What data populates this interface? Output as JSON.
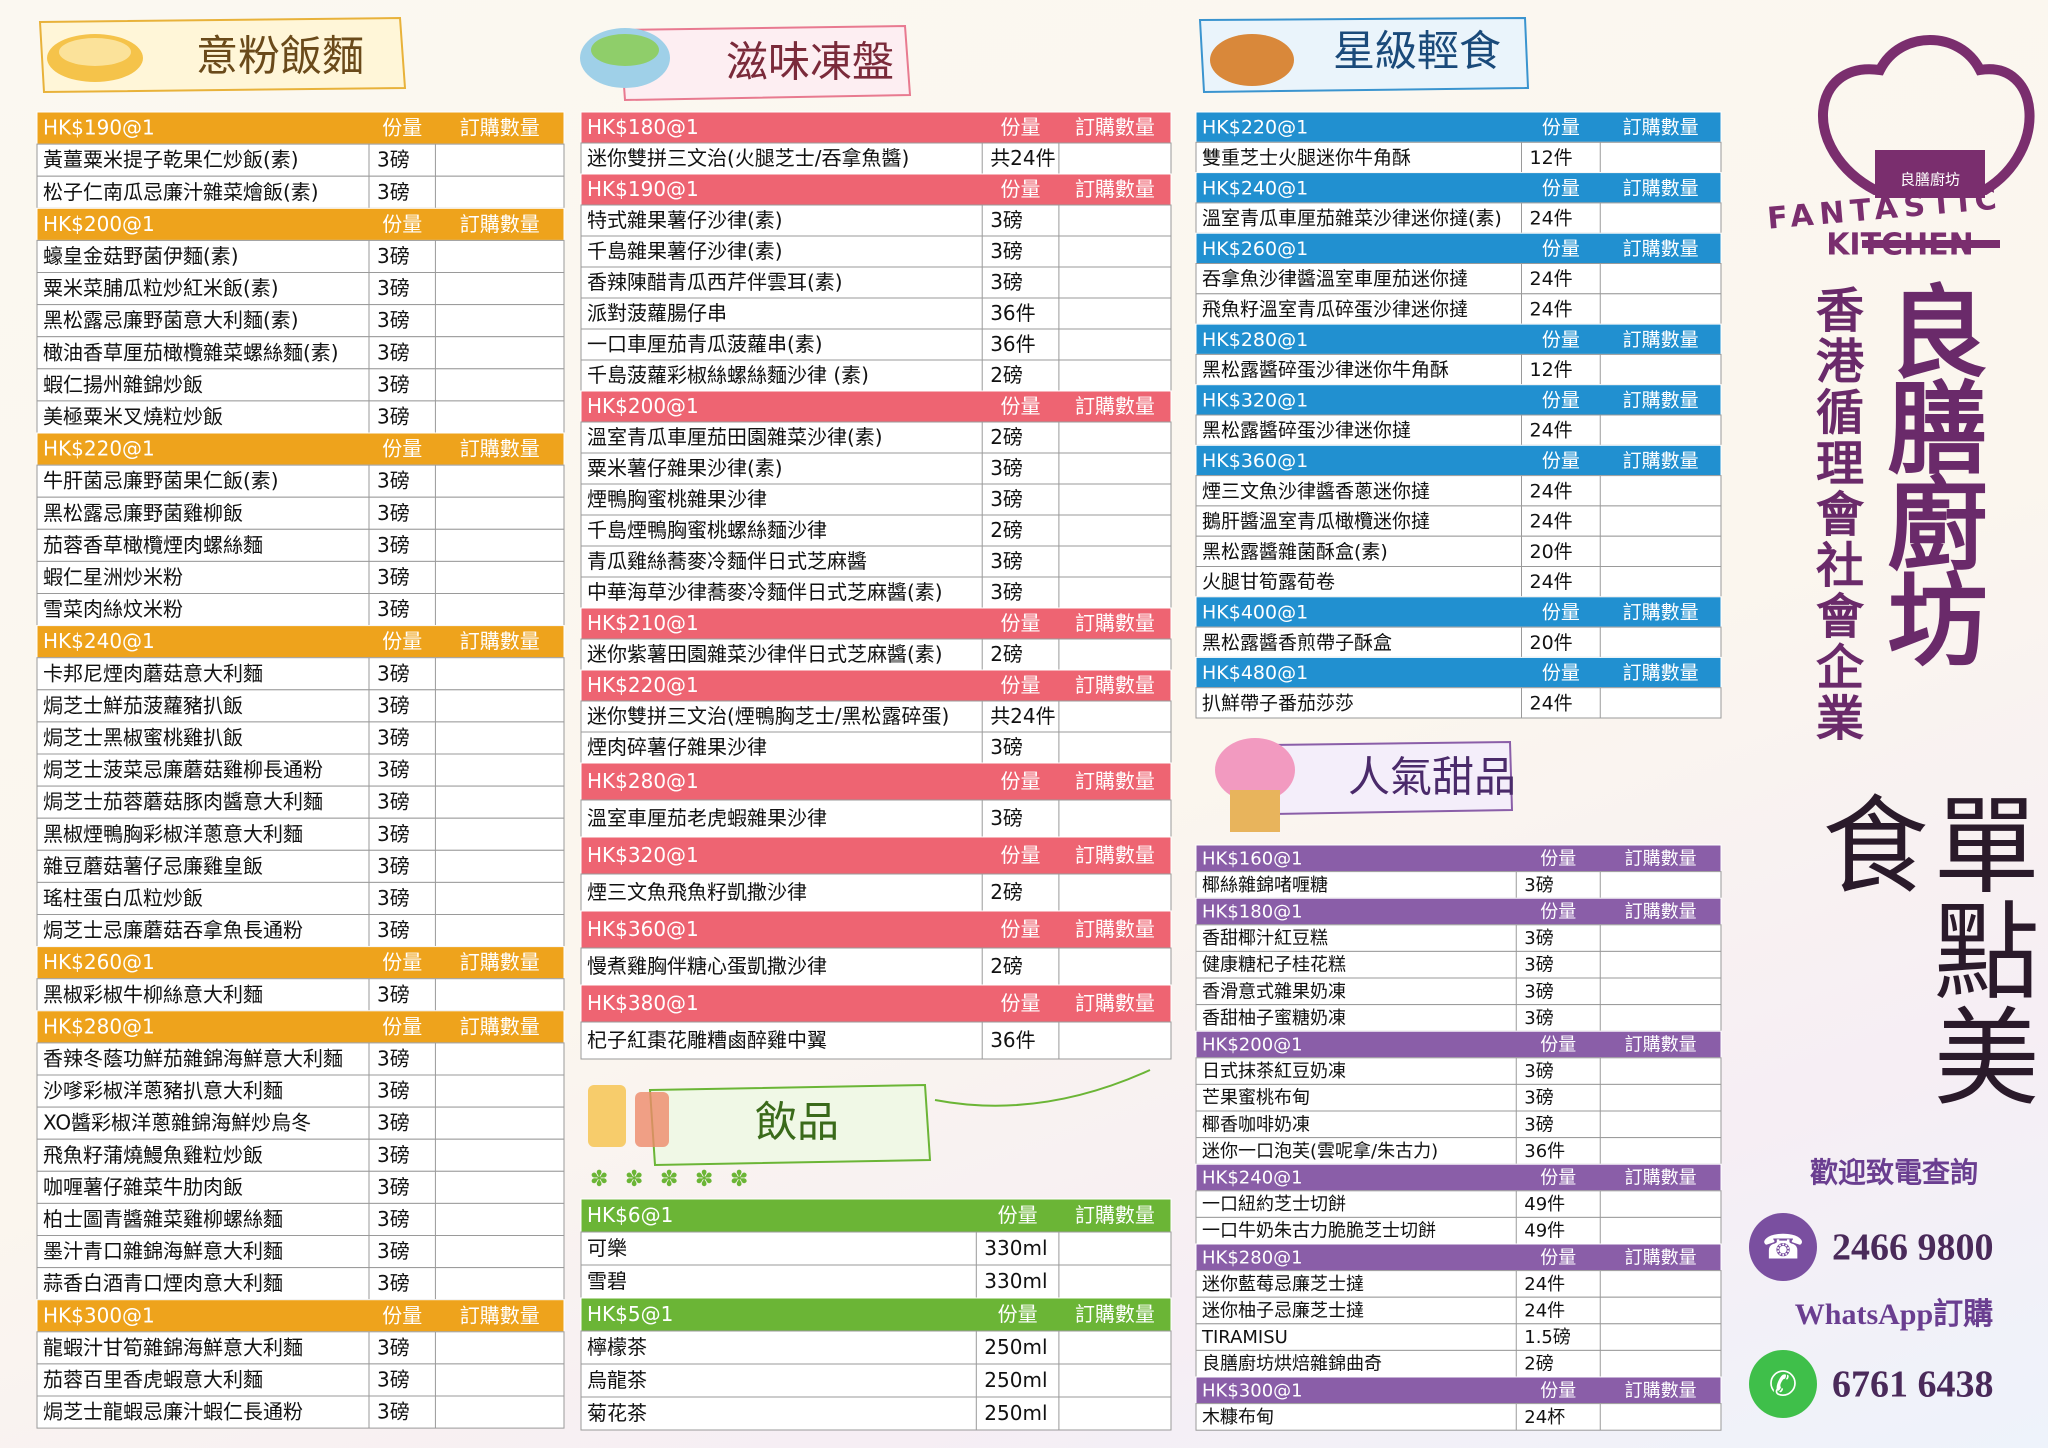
{
  "columns": [
    "份量",
    "訂購數量"
  ],
  "sections": [
    {
      "title": "意粉飯麵",
      "groups": [
        {
          "price": "HK$190@1",
          "items": [
            {
              "name": "黃薑粟米提子乾果仁炒飯(素)",
              "qty": "3磅"
            },
            {
              "name": "松子仁南瓜忌廉汁雜菜燴飯(素)",
              "qty": "3磅"
            }
          ]
        },
        {
          "price": "HK$200@1",
          "items": [
            {
              "name": "蠔皇金菇野菌伊麵(素)",
              "qty": "3磅"
            },
            {
              "name": "粟米菜脯瓜粒炒紅米飯(素)",
              "qty": "3磅"
            },
            {
              "name": "黑松露忌廉野菌意大利麵(素)",
              "qty": "3磅"
            },
            {
              "name": "橄油香草厘茄橄欖雜菜螺絲麵(素)",
              "qty": "3磅"
            },
            {
              "name": "蝦仁揚州雜錦炒飯",
              "qty": "3磅"
            },
            {
              "name": "美極粟米叉燒粒炒飯",
              "qty": "3磅"
            }
          ]
        },
        {
          "price": "HK$220@1",
          "items": [
            {
              "name": "牛肝菌忌廉野菌果仁飯(素)",
              "qty": "3磅"
            },
            {
              "name": "黑松露忌廉野菌雞柳飯",
              "qty": "3磅"
            },
            {
              "name": "茄蓉香草橄欖煙肉螺絲麵",
              "qty": "3磅"
            },
            {
              "name": "蝦仁星洲炒米粉",
              "qty": "3磅"
            },
            {
              "name": "雪菜肉絲炆米粉",
              "qty": "3磅"
            }
          ]
        },
        {
          "price": "HK$240@1",
          "items": [
            {
              "name": "卡邦尼煙肉蘑菇意大利麵",
              "qty": "3磅"
            },
            {
              "name": "焗芝士鮮茄菠蘿豬扒飯",
              "qty": "3磅"
            },
            {
              "name": "焗芝士黑椒蜜桃雞扒飯",
              "qty": "3磅"
            },
            {
              "name": "焗芝士菠菜忌廉蘑菇雞柳長通粉",
              "qty": "3磅"
            },
            {
              "name": "焗芝士茄蓉蘑菇豚肉醬意大利麵",
              "qty": "3磅"
            },
            {
              "name": "黑椒煙鴨胸彩椒洋蔥意大利麵",
              "qty": "3磅"
            },
            {
              "name": "雜豆蘑菇薯仔忌廉雞皇飯",
              "qty": "3磅"
            },
            {
              "name": "瑤柱蛋白瓜粒炒飯",
              "qty": "3磅"
            },
            {
              "name": "焗芝士忌廉蘑菇吞拿魚長通粉",
              "qty": "3磅"
            }
          ]
        },
        {
          "price": "HK$260@1",
          "items": [
            {
              "name": "黑椒彩椒牛柳絲意大利麵",
              "qty": "3磅"
            }
          ]
        },
        {
          "price": "HK$280@1",
          "items": [
            {
              "name": "香辣冬蔭功鮮茄雜錦海鮮意大利麵",
              "qty": "3磅"
            },
            {
              "name": "沙嗲彩椒洋蔥豬扒意大利麵",
              "qty": "3磅"
            },
            {
              "name": "XO醬彩椒洋蔥雜錦海鮮炒烏冬",
              "qty": "3磅"
            },
            {
              "name": "飛魚籽蒲燒鰻魚雞粒炒飯",
              "qty": "3磅"
            },
            {
              "name": "咖喱薯仔雜菜牛肋肉飯",
              "qty": "3磅"
            },
            {
              "name": "柏士圖青醬雜菜雞柳螺絲麵",
              "qty": "3磅"
            },
            {
              "name": "墨汁青口雜錦海鮮意大利麵",
              "qty": "3磅"
            },
            {
              "name": "蒜香白酒青口煙肉意大利麵",
              "qty": "3磅"
            }
          ]
        },
        {
          "price": "HK$300@1",
          "items": [
            {
              "name": "龍蝦汁甘筍雜錦海鮮意大利麵",
              "qty": "3磅"
            },
            {
              "name": "茄蓉百里香虎蝦意大利麵",
              "qty": "3磅"
            },
            {
              "name": "焗芝士龍蝦忌廉汁蝦仁長通粉",
              "qty": "3磅"
            }
          ]
        }
      ]
    },
    {
      "title": "滋味凍盤",
      "groups": [
        {
          "price": "HK$180@1",
          "items": [
            {
              "name": "迷你雙拼三文治(火腿芝士/吞拿魚醬)",
              "qty": "共24件"
            }
          ]
        },
        {
          "price": "HK$190@1",
          "items": [
            {
              "name": "特式雜果薯仔沙律(素)",
              "qty": "3磅"
            },
            {
              "name": "千島雜果薯仔沙律(素)",
              "qty": "3磅"
            },
            {
              "name": "香辣陳醋青瓜西芹伴雲耳(素)",
              "qty": "3磅"
            },
            {
              "name": "派對菠蘿腸仔串",
              "qty": "36件"
            },
            {
              "name": "一口車厘茄青瓜菠蘿串(素)",
              "qty": "36件"
            },
            {
              "name": "千島菠蘿彩椒絲螺絲麵沙律 (素)",
              "qty": "2磅"
            }
          ]
        },
        {
          "price": "HK$200@1",
          "items": [
            {
              "name": "溫室青瓜車厘茄田園雜菜沙律(素)",
              "qty": "2磅"
            },
            {
              "name": "粟米薯仔雜果沙律(素)",
              "qty": "3磅"
            },
            {
              "name": "煙鴨胸蜜桃雜果沙律",
              "qty": "3磅"
            },
            {
              "name": "千島煙鴨胸蜜桃螺絲麵沙律",
              "qty": "2磅"
            },
            {
              "name": "青瓜雞絲蕎麥冷麵伴日式芝麻醬",
              "qty": "3磅"
            },
            {
              "name": "中華海草沙律蕎麥冷麵伴日式芝麻醬(素)",
              "qty": "3磅"
            }
          ]
        },
        {
          "price": "HK$210@1",
          "items": [
            {
              "name": "迷你紫薯田園雜菜沙律伴日式芝麻醬(素)",
              "qty": "2磅"
            }
          ]
        },
        {
          "price": "HK$220@1",
          "items": [
            {
              "name": "迷你雙拼三文治(煙鴨胸芝士/黑松露碎蛋)",
              "qty": "共24件"
            },
            {
              "name": "煙肉碎薯仔雜果沙律",
              "qty": "3磅"
            }
          ]
        },
        {
          "price": "HK$280@1",
          "items": [
            {
              "name": "溫室車厘茄老虎蝦雜果沙律",
              "qty": "3磅"
            }
          ]
        },
        {
          "price": "HK$320@1",
          "items": [
            {
              "name": "煙三文魚飛魚籽凱撒沙律",
              "qty": "2磅"
            }
          ]
        },
        {
          "price": "HK$360@1",
          "items": [
            {
              "name": "慢煮雞胸伴糖心蛋凱撒沙律",
              "qty": "2磅"
            }
          ]
        },
        {
          "price": "HK$380@1",
          "items": [
            {
              "name": "杞子紅棗花雕糟鹵醉雞中翼",
              "qty": "36件"
            }
          ]
        }
      ]
    },
    {
      "title": "飲品",
      "groups": [
        {
          "price": "HK$6@1",
          "items": [
            {
              "name": "可樂",
              "qty": "330ml"
            },
            {
              "name": "雪碧",
              "qty": "330ml"
            }
          ]
        },
        {
          "price": "HK$5@1",
          "items": [
            {
              "name": "檸檬茶",
              "qty": "250ml"
            },
            {
              "name": "烏龍茶",
              "qty": "250ml"
            },
            {
              "name": "菊花茶",
              "qty": "250ml"
            }
          ]
        }
      ]
    },
    {
      "title": "星級輕食",
      "groups": [
        {
          "price": "HK$220@1",
          "items": [
            {
              "name": "雙重芝士火腿迷你牛角酥",
              "qty": "12件"
            }
          ]
        },
        {
          "price": "HK$240@1",
          "items": [
            {
              "name": "溫室青瓜車厘茄雜菜沙律迷你撻(素)",
              "qty": "24件"
            }
          ]
        },
        {
          "price": "HK$260@1",
          "items": [
            {
              "name": "吞拿魚沙律醬溫室車厘茄迷你撻",
              "qty": "24件"
            },
            {
              "name": "飛魚籽溫室青瓜碎蛋沙律迷你撻",
              "qty": "24件"
            }
          ]
        },
        {
          "price": "HK$280@1",
          "items": [
            {
              "name": "黑松露醬碎蛋沙律迷你牛角酥",
              "qty": "12件"
            }
          ]
        },
        {
          "price": "HK$320@1",
          "items": [
            {
              "name": "黑松露醬碎蛋沙律迷你撻",
              "qty": "24件"
            }
          ]
        },
        {
          "price": "HK$360@1",
          "items": [
            {
              "name": "煙三文魚沙律醬香蔥迷你撻",
              "qty": "24件"
            },
            {
              "name": "鵝肝醬溫室青瓜橄欖迷你撻",
              "qty": "24件"
            },
            {
              "name": "黑松露醬雜菌酥盒(素)",
              "qty": "20件"
            },
            {
              "name": "火腿甘筍露荀卷",
              "qty": "24件"
            }
          ]
        },
        {
          "price": "HK$400@1",
          "items": [
            {
              "name": "黑松露醬香煎帶子酥盒",
              "qty": "20件"
            }
          ]
        },
        {
          "price": "HK$480@1",
          "items": [
            {
              "name": "扒鮮帶子番茄莎莎",
              "qty": "24件"
            }
          ]
        }
      ]
    },
    {
      "title": "人氣甜品",
      "groups": [
        {
          "price": "HK$160@1",
          "items": [
            {
              "name": "椰絲雜錦啫喱糖",
              "qty": "3磅"
            }
          ]
        },
        {
          "price": "HK$180@1",
          "items": [
            {
              "name": "香甜椰汁紅豆糕",
              "qty": "3磅"
            },
            {
              "name": "健康糖杞子桂花糕",
              "qty": "3磅"
            },
            {
              "name": "香滑意式雜果奶凍",
              "qty": "3磅"
            },
            {
              "name": "香甜柚子蜜糖奶凍",
              "qty": "3磅"
            }
          ]
        },
        {
          "price": "HK$200@1",
          "items": [
            {
              "name": "日式抹茶紅豆奶凍",
              "qty": "3磅"
            },
            {
              "name": "芒果蜜桃布甸",
              "qty": "3磅"
            },
            {
              "name": "椰香咖啡奶凍",
              "qty": "3磅"
            },
            {
              "name": "迷你一口泡芙(雲呢拿/朱古力)",
              "qty": "36件"
            }
          ]
        },
        {
          "price": "HK$240@1",
          "items": [
            {
              "name": "一口紐約芝士切餅",
              "qty": "49件"
            },
            {
              "name": "一口牛奶朱古力脆脆芝士切餅",
              "qty": "49件"
            }
          ]
        },
        {
          "price": "HK$280@1",
          "items": [
            {
              "name": "迷你藍莓忌廉芝士撻",
              "qty": "24件"
            },
            {
              "name": "迷你柚子忌廉芝士撻",
              "qty": "24件"
            },
            {
              "name": "TIRAMISU",
              "qty": "1.5磅"
            },
            {
              "name": "良膳廚坊烘焙雜錦曲奇",
              "qty": "2磅"
            }
          ]
        },
        {
          "price": "HK$300@1",
          "items": [
            {
              "name": "木糠布甸",
              "qty": "24杯"
            }
          ]
        }
      ]
    }
  ],
  "brand": {
    "hat_label": "良膳廚坊",
    "logo_top": "FANTASTIC",
    "logo_bottom": "KITCHEN",
    "name": "良膳廚坊",
    "org": "香港循理會社會企業",
    "slogan": "單點美食",
    "enquiry": "歡迎致電查詢",
    "phone": "2466 9800",
    "whatsapp_label": "WhatsApp訂購",
    "whatsapp": "6761 6438"
  }
}
